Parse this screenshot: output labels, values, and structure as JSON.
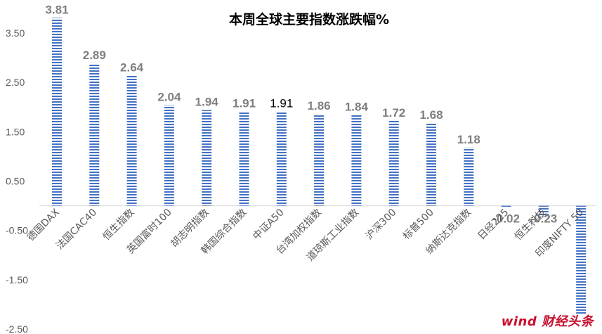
{
  "chart_data": {
    "type": "bar",
    "title": "本周全球主要指数涨跌幅%",
    "categories": [
      "德国DAX",
      "法国CAC40",
      "恒生指数",
      "英国富时100",
      "胡志明指数",
      "韩国综合指数",
      "中证A50",
      "台湾加权指数",
      "道琼斯工业指数",
      "沪深300",
      "标普500",
      "纳斯达克指数",
      "日经225",
      "恒生科技",
      "印度NIFTY 50"
    ],
    "values": [
      3.81,
      2.89,
      2.64,
      2.04,
      1.94,
      1.91,
      1.91,
      1.86,
      1.84,
      1.72,
      1.68,
      1.18,
      -0.02,
      -0.23,
      -2.2
    ],
    "data_labels": [
      "3.81",
      "2.89",
      "2.64",
      "2.04",
      "1.94",
      "1.91",
      "1.91",
      "1.86",
      "1.84",
      "1.72",
      "1.68",
      "1.18",
      "-0.02",
      "-0.23",
      ""
    ],
    "yticks": [
      "3.50",
      "2.50",
      "1.50",
      "0.50",
      "-0.50",
      "-1.50",
      "-2.50"
    ],
    "ylim": [
      -2.5,
      4.0
    ],
    "grid": false,
    "bar_color": "#4472c4",
    "watermark": "wind 财经头条"
  }
}
